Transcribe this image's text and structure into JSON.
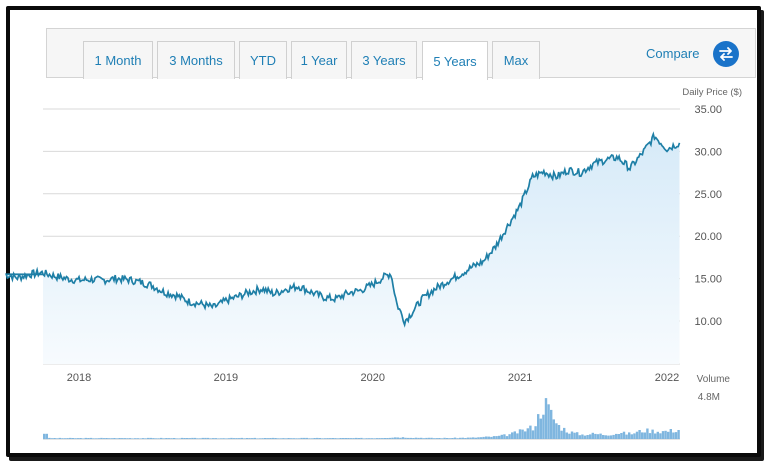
{
  "tabs": [
    {
      "label": "1 Month",
      "active": false
    },
    {
      "label": "3 Months",
      "active": false
    },
    {
      "label": "YTD",
      "active": false
    },
    {
      "label": "1 Year",
      "active": false
    },
    {
      "label": "3 Years",
      "active": false
    },
    {
      "label": "5 Years",
      "active": true
    },
    {
      "label": "Max",
      "active": false
    }
  ],
  "compare_label": "Compare",
  "colors": {
    "line": "#1e7fa6",
    "fill": "#e8f3fb",
    "grid": "#d9d9d9",
    "volume": "#7fb6df",
    "tab_text": "#1f7fb5",
    "compare_button": "#1a73c9"
  },
  "chart_data": [
    {
      "type": "area",
      "ylabel": "Daily Price ($)",
      "ylim": [
        5,
        35
      ],
      "yticks": [
        "35.00",
        "30.00",
        "25.00",
        "20.00",
        "15.00",
        "10.00"
      ],
      "xticks": [
        "2018",
        "2019",
        "2020",
        "2021",
        "2022"
      ],
      "grid": true,
      "series": [
        {
          "points": [
            [
              "2017-07",
              15.5
            ],
            [
              "2017-08",
              15.1
            ],
            [
              "2017-09",
              15.5
            ],
            [
              "2017-10",
              15.7
            ],
            [
              "2017-11",
              15.3
            ],
            [
              "2017-12",
              15.0
            ],
            [
              "2018-01",
              14.8
            ],
            [
              "2018-02",
              14.9
            ],
            [
              "2018-03",
              14.8
            ],
            [
              "2018-04",
              15.0
            ],
            [
              "2018-05",
              14.9
            ],
            [
              "2018-06",
              14.6
            ],
            [
              "2018-07",
              14.2
            ],
            [
              "2018-08",
              13.4
            ],
            [
              "2018-09",
              13.0
            ],
            [
              "2018-10",
              12.3
            ],
            [
              "2018-11",
              12.0
            ],
            [
              "2018-12",
              11.6
            ],
            [
              "2019-01",
              12.4
            ],
            [
              "2019-02",
              12.9
            ],
            [
              "2019-03",
              13.4
            ],
            [
              "2019-04",
              13.8
            ],
            [
              "2019-05",
              13.2
            ],
            [
              "2019-06",
              13.8
            ],
            [
              "2019-07",
              14.1
            ],
            [
              "2019-08",
              13.4
            ],
            [
              "2019-09",
              12.8
            ],
            [
              "2019-10",
              12.6
            ],
            [
              "2019-11",
              13.3
            ],
            [
              "2019-12",
              13.6
            ],
            [
              "2020-01",
              14.3
            ],
            [
              "2020-02",
              15.3
            ],
            [
              "2020-02-15",
              15.6
            ],
            [
              "2020-03",
              12.0
            ],
            [
              "2020-03-20",
              10.0
            ],
            [
              "2020-04",
              10.6
            ],
            [
              "2020-05",
              12.5
            ],
            [
              "2020-06",
              13.7
            ],
            [
              "2020-07",
              14.6
            ],
            [
              "2020-08",
              15.4
            ],
            [
              "2020-09",
              16.3
            ],
            [
              "2020-10",
              17.0
            ],
            [
              "2020-11",
              18.8
            ],
            [
              "2020-12",
              21.2
            ],
            [
              "2021-01",
              23.6
            ],
            [
              "2021-02",
              27.0
            ],
            [
              "2021-03",
              27.6
            ],
            [
              "2021-04",
              27.0
            ],
            [
              "2021-05",
              27.8
            ],
            [
              "2021-06",
              27.5
            ],
            [
              "2021-07",
              28.5
            ],
            [
              "2021-08",
              29.0
            ],
            [
              "2021-09",
              29.3
            ],
            [
              "2021-10",
              28.0
            ],
            [
              "2021-11",
              29.8
            ],
            [
              "2021-12",
              31.8
            ],
            [
              "2022-01",
              30.3
            ],
            [
              "2022-02",
              31.0
            ]
          ]
        }
      ]
    },
    {
      "type": "bar",
      "ylabel": "Volume",
      "ymax_label": "4.8M",
      "ylim": [
        0,
        4.8
      ],
      "series": [
        {
          "name": "Volume",
          "points": [
            [
              "2017-07",
              0.6
            ],
            [
              "2017-09",
              0.1
            ],
            [
              "2018-01",
              0.1
            ],
            [
              "2018-06",
              0.1
            ],
            [
              "2019-01",
              0.1
            ],
            [
              "2019-06",
              0.1
            ],
            [
              "2020-01",
              0.1
            ],
            [
              "2020-03",
              0.2
            ],
            [
              "2020-06",
              0.1
            ],
            [
              "2020-09",
              0.15
            ],
            [
              "2020-11",
              0.3
            ],
            [
              "2020-12",
              0.5
            ],
            [
              "2021-01",
              0.9
            ],
            [
              "2021-02",
              1.4
            ],
            [
              "2021-03",
              4.2
            ],
            [
              "2021-04",
              1.6
            ],
            [
              "2021-05",
              0.8
            ],
            [
              "2021-06",
              0.5
            ],
            [
              "2021-07",
              0.6
            ],
            [
              "2021-08",
              0.5
            ],
            [
              "2021-09",
              0.7
            ],
            [
              "2021-10",
              0.6
            ],
            [
              "2021-11",
              1.0
            ],
            [
              "2021-12",
              0.9
            ],
            [
              "2022-01",
              0.9
            ],
            [
              "2022-02",
              1.1
            ]
          ]
        }
      ]
    }
  ]
}
